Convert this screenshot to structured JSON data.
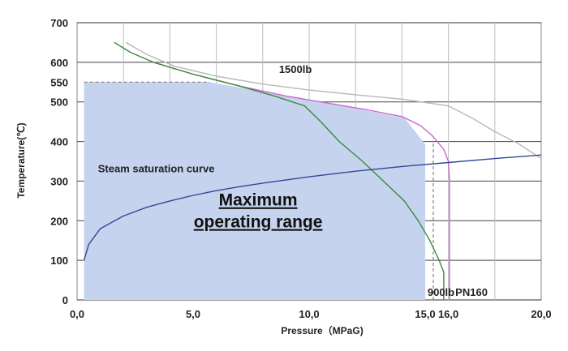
{
  "chart_data": {
    "type": "line",
    "xlabel": "Pressure（MPaG)",
    "ylabel": "Temperature(℃)",
    "xlim": [
      0,
      20
    ],
    "ylim": [
      0,
      700
    ],
    "grid": true,
    "x_ticks": [
      {
        "value": 0,
        "label": "0,0"
      },
      {
        "value": 5,
        "label": "5,0"
      },
      {
        "value": 10,
        "label": "10,0"
      },
      {
        "value": 15,
        "label": "15,0"
      },
      {
        "value": 16,
        "label": "16,0"
      },
      {
        "value": 20,
        "label": "20,0"
      }
    ],
    "y_ticks": [
      {
        "value": 0,
        "label": "0"
      },
      {
        "value": 100,
        "label": "100"
      },
      {
        "value": 200,
        "label": "200"
      },
      {
        "value": 300,
        "label": "300"
      },
      {
        "value": 400,
        "label": "400"
      },
      {
        "value": 500,
        "label": "500"
      },
      {
        "value": 550,
        "label": "550"
      },
      {
        "value": 600,
        "label": "600"
      },
      {
        "value": 700,
        "label": "700"
      }
    ],
    "region": {
      "label_line1": "Maximum",
      "label_line2": "operating range",
      "color": "#c5d3ee",
      "points": [
        [
          0.3,
          0
        ],
        [
          0.3,
          550
        ],
        [
          5.7,
          550
        ],
        [
          10,
          505
        ],
        [
          14.1,
          460
        ],
        [
          15.0,
          393
        ],
        [
          15.0,
          0
        ]
      ]
    },
    "series": [
      {
        "name": "1500lb",
        "color": "#b8b8b8",
        "points": [
          [
            2.1,
            650
          ],
          [
            3.0,
            620
          ],
          [
            4.2,
            590
          ],
          [
            6.0,
            565
          ],
          [
            8.0,
            545
          ],
          [
            10.0,
            530
          ],
          [
            12.0,
            518
          ],
          [
            14.0,
            507
          ],
          [
            16.0,
            490
          ],
          [
            17.0,
            460
          ],
          [
            18.0,
            425
          ],
          [
            19.0,
            395
          ],
          [
            20.0,
            357
          ]
        ]
      },
      {
        "name": "PN160",
        "color": "#cc66cc",
        "points": [
          [
            3.3,
            600
          ],
          [
            5.0,
            570
          ],
          [
            7.0,
            540
          ],
          [
            9.0,
            515
          ],
          [
            11.0,
            495
          ],
          [
            12.5,
            480
          ],
          [
            14.0,
            463
          ],
          [
            14.8,
            440
          ],
          [
            15.3,
            415
          ],
          [
            15.8,
            380
          ],
          [
            16.0,
            350
          ],
          [
            16.05,
            300
          ],
          [
            16.05,
            0
          ]
        ]
      },
      {
        "name": "900lb",
        "color": "#3a8a3a",
        "points": [
          [
            1.6,
            650
          ],
          [
            2.3,
            625
          ],
          [
            3.3,
            600
          ],
          [
            5.0,
            570
          ],
          [
            7.0,
            540
          ],
          [
            8.5,
            515
          ],
          [
            9.8,
            490
          ],
          [
            10.5,
            450
          ],
          [
            11.3,
            400
          ],
          [
            12.3,
            350
          ],
          [
            13.2,
            300
          ],
          [
            14.1,
            250
          ],
          [
            14.7,
            200
          ],
          [
            15.2,
            150
          ],
          [
            15.6,
            100
          ],
          [
            15.8,
            70
          ],
          [
            15.8,
            0
          ]
        ]
      },
      {
        "name": "Steam saturation curve",
        "color": "#34469a",
        "points": [
          [
            0.3,
            100
          ],
          [
            0.5,
            140
          ],
          [
            1.0,
            180
          ],
          [
            2.0,
            212
          ],
          [
            3.0,
            234
          ],
          [
            4.0,
            250
          ],
          [
            5.0,
            264
          ],
          [
            6.0,
            276
          ],
          [
            7.0,
            286
          ],
          [
            8.0,
            295
          ],
          [
            10.0,
            311
          ],
          [
            12.0,
            325
          ],
          [
            14.0,
            337
          ],
          [
            16.0,
            347
          ],
          [
            18.0,
            357
          ],
          [
            20.0,
            366
          ]
        ]
      }
    ],
    "reference_line": {
      "color": "#808080",
      "points": [
        [
          0.3,
          550
        ],
        [
          5.7,
          550
        ]
      ]
    },
    "reference_line_v": {
      "color": "#808080",
      "points": [
        [
          15.35,
          0
        ],
        [
          15.35,
          400
        ]
      ]
    },
    "annotations": [
      {
        "text": "1500lb",
        "x": 8.7,
        "y": 573
      },
      {
        "text": "Steam saturation curve",
        "x": 0.9,
        "y": 322
      },
      {
        "text": "900lb",
        "x": 15.1,
        "y": 10
      },
      {
        "text": "PN160",
        "x": 16.3,
        "y": 10
      }
    ]
  }
}
